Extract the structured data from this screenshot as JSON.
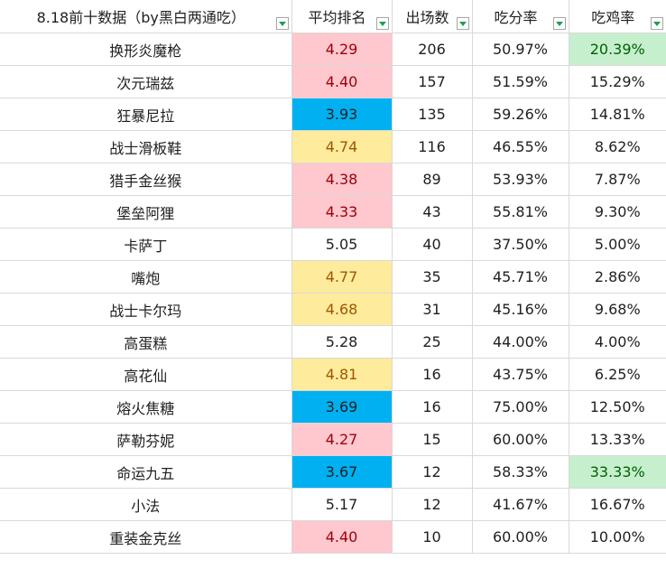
{
  "headers": [
    {
      "label": "8.18前十数据（by黑白两通吃）",
      "filter_icon": "filter-dropdown-icon"
    },
    {
      "label": "平均排名",
      "filter_icon": "filter-dropdown-icon"
    },
    {
      "label": "出场数",
      "filter_icon": "filter-dropdown-icon"
    },
    {
      "label": "吃分率",
      "filter_icon": "filter-dropdown-icon"
    },
    {
      "label": "吃鸡率",
      "filter_icon": "filter-dropdown-icon"
    }
  ],
  "colors": {
    "red_fill": "#ffc7ce",
    "yellow_fill": "#ffeb9c",
    "blue_fill": "#00b0f0",
    "green_fill": "#c6efce",
    "filter_arrow": "#1a9e55"
  },
  "rows": [
    {
      "name": "换形炎魔枪",
      "avg_rank": "4.29",
      "rank_color": "red",
      "games": "206",
      "score_rate": "50.97%",
      "win_rate": "20.39%",
      "win_color": "green"
    },
    {
      "name": "次元瑞兹",
      "avg_rank": "4.40",
      "rank_color": "red",
      "games": "157",
      "score_rate": "51.59%",
      "win_rate": "15.29%",
      "win_color": "none"
    },
    {
      "name": "狂暴尼拉",
      "avg_rank": "3.93",
      "rank_color": "blue",
      "games": "135",
      "score_rate": "59.26%",
      "win_rate": "14.81%",
      "win_color": "none"
    },
    {
      "name": "战士滑板鞋",
      "avg_rank": "4.74",
      "rank_color": "yellow",
      "games": "116",
      "score_rate": "46.55%",
      "win_rate": "8.62%",
      "win_color": "none"
    },
    {
      "name": "猎手金丝猴",
      "avg_rank": "4.38",
      "rank_color": "red",
      "games": "89",
      "score_rate": "53.93%",
      "win_rate": "7.87%",
      "win_color": "none"
    },
    {
      "name": "堡垒阿狸",
      "avg_rank": "4.33",
      "rank_color": "red",
      "games": "43",
      "score_rate": "55.81%",
      "win_rate": "9.30%",
      "win_color": "none"
    },
    {
      "name": "卡萨丁",
      "avg_rank": "5.05",
      "rank_color": "none",
      "games": "40",
      "score_rate": "37.50%",
      "win_rate": "5.00%",
      "win_color": "none"
    },
    {
      "name": "嘴炮",
      "avg_rank": "4.77",
      "rank_color": "yellow",
      "games": "35",
      "score_rate": "45.71%",
      "win_rate": "2.86%",
      "win_color": "none"
    },
    {
      "name": "战士卡尔玛",
      "avg_rank": "4.68",
      "rank_color": "yellow",
      "games": "31",
      "score_rate": "45.16%",
      "win_rate": "9.68%",
      "win_color": "none"
    },
    {
      "name": "高蛋糕",
      "avg_rank": "5.28",
      "rank_color": "none",
      "games": "25",
      "score_rate": "44.00%",
      "win_rate": "4.00%",
      "win_color": "none"
    },
    {
      "name": "高花仙",
      "avg_rank": "4.81",
      "rank_color": "yellow",
      "games": "16",
      "score_rate": "43.75%",
      "win_rate": "6.25%",
      "win_color": "none"
    },
    {
      "name": "熔火焦糖",
      "avg_rank": "3.69",
      "rank_color": "blue",
      "games": "16",
      "score_rate": "75.00%",
      "win_rate": "12.50%",
      "win_color": "none"
    },
    {
      "name": "萨勒芬妮",
      "avg_rank": "4.27",
      "rank_color": "red",
      "games": "15",
      "score_rate": "60.00%",
      "win_rate": "13.33%",
      "win_color": "none"
    },
    {
      "name": "命运九五",
      "avg_rank": "3.67",
      "rank_color": "blue",
      "games": "12",
      "score_rate": "58.33%",
      "win_rate": "33.33%",
      "win_color": "green"
    },
    {
      "name": "小法",
      "avg_rank": "5.17",
      "rank_color": "none",
      "games": "12",
      "score_rate": "41.67%",
      "win_rate": "16.67%",
      "win_color": "none"
    },
    {
      "name": "重装金克丝",
      "avg_rank": "4.40",
      "rank_color": "red",
      "games": "10",
      "score_rate": "60.00%",
      "win_rate": "10.00%",
      "win_color": "none"
    }
  ]
}
